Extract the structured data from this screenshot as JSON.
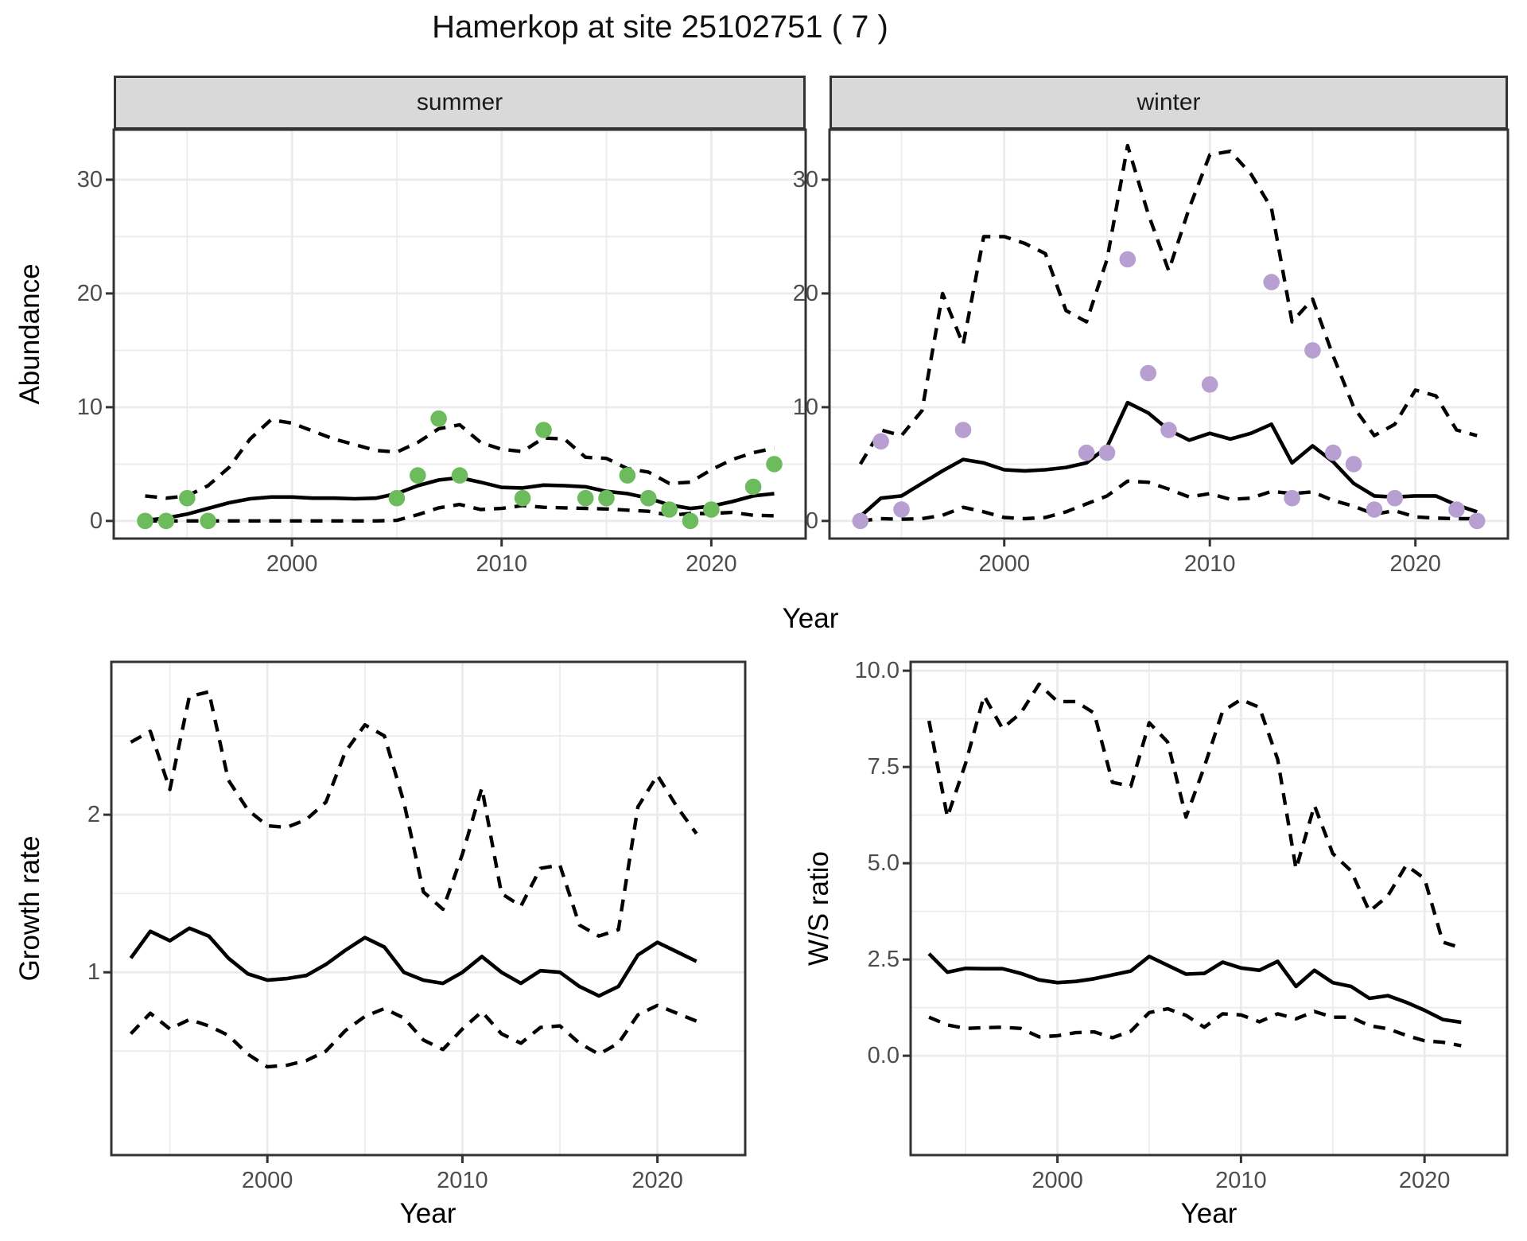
{
  "title": "Hamerkop at site 25102751 ( 7 )",
  "labels": {
    "summer_facet": "summer",
    "winter_facet": "winter",
    "abundance_axis": "Abundance",
    "growth_axis": "Growth rate",
    "ws_axis": "W/S ratio",
    "year_axis": "Year"
  },
  "colors": {
    "summer_points": "#6CBB5D",
    "winter_points": "#B79FD1",
    "line": "#000000",
    "grid": "#EBEBEB",
    "panel_border": "#333333",
    "tick_text": "#4d4d4d",
    "strip_bg": "#D9D9D9"
  },
  "chart_data": {
    "type": "line",
    "title": "Hamerkop at site 25102751 ( 7 )",
    "legend": "none",
    "line_styles": {
      "fit": "solid",
      "upper_ci": "dashed",
      "lower_ci": "dashed",
      "observations": "points"
    },
    "panels": [
      {
        "id": "summer",
        "facet": "summer",
        "xlabel": "Year",
        "ylabel": "Abundance",
        "x_range": [
          1991.5,
          2024.5
        ],
        "y_range": [
          -1.55,
          34.4
        ],
        "x_ticks": [
          2000,
          2010,
          2020
        ],
        "x_tick_labels": [
          "2000",
          "2010",
          "2020"
        ],
        "x_minor": [
          1995,
          2005,
          2015
        ],
        "y_ticks": [
          0,
          10,
          20,
          30
        ],
        "y_tick_labels": [
          "0",
          "10",
          "20",
          "30"
        ],
        "y_minor": [
          5,
          15,
          25
        ],
        "start_year": 1993,
        "fit": [
          0.05,
          0.25,
          0.6,
          1.1,
          1.6,
          1.95,
          2.1,
          2.1,
          2.0,
          2.0,
          1.95,
          2.0,
          2.4,
          3.1,
          3.6,
          3.8,
          3.4,
          2.95,
          2.9,
          3.15,
          3.1,
          3.0,
          2.6,
          2.4,
          2.0,
          1.4,
          1.1,
          1.3,
          1.7,
          2.2,
          2.4
        ],
        "upper_ci": [
          2.2,
          2.0,
          2.2,
          3.1,
          4.7,
          7.2,
          8.9,
          8.6,
          7.9,
          7.2,
          6.7,
          6.2,
          6.05,
          6.9,
          8.1,
          8.45,
          6.9,
          6.3,
          6.1,
          7.3,
          7.2,
          5.6,
          5.5,
          4.6,
          4.3,
          3.3,
          3.4,
          4.5,
          5.4,
          6.0,
          6.4
        ],
        "lower_ci": [
          0,
          0,
          0,
          0,
          0,
          0,
          0,
          0,
          0,
          0,
          0,
          0,
          0.05,
          0.55,
          1.15,
          1.45,
          1.0,
          1.1,
          1.35,
          1.2,
          1.15,
          1.1,
          1.05,
          0.95,
          0.85,
          0.5,
          0.65,
          0.65,
          0.75,
          0.5,
          0.45
        ],
        "observations": [
          [
            1993,
            0
          ],
          [
            1994,
            0
          ],
          [
            1995,
            2
          ],
          [
            1996,
            0
          ],
          [
            2005,
            2
          ],
          [
            2006,
            4
          ],
          [
            2007,
            9
          ],
          [
            2008,
            4
          ],
          [
            2011,
            2
          ],
          [
            2012,
            8
          ],
          [
            2014,
            2
          ],
          [
            2015,
            2
          ],
          [
            2016,
            4
          ],
          [
            2017,
            2
          ],
          [
            2018,
            1
          ],
          [
            2019,
            0
          ],
          [
            2020,
            1
          ],
          [
            2022,
            3
          ],
          [
            2023,
            5
          ]
        ],
        "point_color": "#6CBB5D"
      },
      {
        "id": "winter",
        "facet": "winter",
        "xlabel": "Year",
        "ylabel": "Abundance",
        "x_range": [
          1991.5,
          2024.5
        ],
        "y_range": [
          -1.55,
          34.4
        ],
        "x_ticks": [
          2000,
          2010,
          2020
        ],
        "x_tick_labels": [
          "2000",
          "2010",
          "2020"
        ],
        "x_minor": [
          1995,
          2005,
          2015
        ],
        "y_ticks": [
          0,
          10,
          20,
          30
        ],
        "y_tick_labels": [
          "0",
          "10",
          "20",
          "30"
        ],
        "y_minor": [
          5,
          15,
          25
        ],
        "start_year": 1993,
        "fit": [
          0.4,
          2.0,
          2.2,
          3.3,
          4.4,
          5.4,
          5.1,
          4.5,
          4.4,
          4.5,
          4.7,
          5.1,
          6.5,
          10.4,
          9.5,
          8.0,
          7.1,
          7.7,
          7.2,
          7.7,
          8.5,
          5.1,
          6.6,
          5.2,
          3.3,
          2.2,
          2.1,
          2.2,
          2.2,
          1.4,
          0.8
        ],
        "upper_ci": [
          5,
          8,
          7.5,
          9.7,
          20,
          15.5,
          25,
          25,
          24.4,
          23.5,
          18.5,
          17.5,
          23,
          33,
          27,
          22,
          27.5,
          32.2,
          32.5,
          30.5,
          27.5,
          17.5,
          19.5,
          14.5,
          10,
          7.5,
          8.5,
          11.5,
          11,
          8,
          7.5
        ],
        "lower_ci": [
          0,
          0.2,
          0.15,
          0.2,
          0.5,
          1.2,
          0.8,
          0.3,
          0.2,
          0.3,
          0.8,
          1.5,
          2.2,
          3.5,
          3.4,
          2.8,
          2.1,
          2.4,
          1.9,
          2.0,
          2.6,
          2.4,
          2.55,
          1.8,
          1.3,
          0.6,
          0.9,
          0.35,
          0.25,
          0.2,
          0.2
        ],
        "observations": [
          [
            1993,
            0
          ],
          [
            1994,
            7
          ],
          [
            1995,
            1
          ],
          [
            1998,
            8
          ],
          [
            2004,
            6
          ],
          [
            2005,
            6
          ],
          [
            2006,
            23
          ],
          [
            2007,
            13
          ],
          [
            2008,
            8
          ],
          [
            2010,
            12
          ],
          [
            2013,
            21
          ],
          [
            2014,
            2
          ],
          [
            2015,
            15
          ],
          [
            2016,
            6
          ],
          [
            2017,
            5
          ],
          [
            2018,
            1
          ],
          [
            2019,
            2
          ],
          [
            2022,
            1
          ],
          [
            2023,
            0
          ]
        ],
        "point_color": "#B79FD1"
      },
      {
        "id": "growth",
        "facet": null,
        "xlabel": "Year",
        "ylabel": "Growth rate",
        "x_range": [
          1992,
          2024.5
        ],
        "y_range": [
          -0.16,
          2.97
        ],
        "x_ticks": [
          2000,
          2010,
          2020
        ],
        "x_tick_labels": [
          "2000",
          "2010",
          "2020"
        ],
        "x_minor": [
          1995,
          2005,
          2015
        ],
        "y_ticks": [
          1,
          2
        ],
        "y_tick_labels": [
          "1",
          "2"
        ],
        "y_minor": [
          0.5,
          1.5,
          2.5
        ],
        "start_year": 1993,
        "fit": [
          1.09,
          1.26,
          1.2,
          1.28,
          1.23,
          1.09,
          0.99,
          0.95,
          0.96,
          0.98,
          1.05,
          1.14,
          1.22,
          1.16,
          1.0,
          0.95,
          0.93,
          1.0,
          1.1,
          1.0,
          0.93,
          1.01,
          1.0,
          0.91,
          0.85,
          0.91,
          1.11,
          1.19,
          1.13,
          1.07
        ],
        "upper_ci": [
          2.46,
          2.53,
          2.16,
          2.75,
          2.78,
          2.22,
          2.03,
          1.93,
          1.92,
          1.97,
          2.08,
          2.4,
          2.57,
          2.5,
          2.08,
          1.51,
          1.4,
          1.75,
          2.17,
          1.5,
          1.42,
          1.66,
          1.68,
          1.3,
          1.23,
          1.27,
          2.05,
          2.25,
          2.05,
          1.88
        ],
        "lower_ci": [
          0.61,
          0.74,
          0.64,
          0.7,
          0.66,
          0.6,
          0.48,
          0.4,
          0.41,
          0.44,
          0.5,
          0.63,
          0.72,
          0.77,
          0.71,
          0.57,
          0.51,
          0.64,
          0.75,
          0.61,
          0.55,
          0.65,
          0.66,
          0.55,
          0.48,
          0.55,
          0.73,
          0.79,
          0.74,
          0.69
        ],
        "observations": [],
        "point_color": "#000000"
      },
      {
        "id": "ws",
        "facet": null,
        "xlabel": "Year",
        "ylabel": "W/S ratio",
        "x_range": [
          1992,
          2024.5
        ],
        "y_range": [
          -2.58,
          10.23
        ],
        "x_ticks": [
          2000,
          2010,
          2020
        ],
        "x_tick_labels": [
          "2000",
          "2010",
          "2020"
        ],
        "x_minor": [
          1995,
          2005,
          2015
        ],
        "y_ticks": [
          0,
          2.5,
          5,
          7.5,
          10
        ],
        "y_tick_labels": [
          "0.0",
          "2.5",
          "5.0",
          "7.5",
          "10.0"
        ],
        "y_minor": [
          1.25,
          3.75,
          6.25,
          8.75
        ],
        "start_year": 1993,
        "fit": [
          2.65,
          2.17,
          2.27,
          2.26,
          2.26,
          2.14,
          1.97,
          1.9,
          1.93,
          2.0,
          2.1,
          2.2,
          2.58,
          2.35,
          2.12,
          2.14,
          2.43,
          2.28,
          2.22,
          2.45,
          1.8,
          2.22,
          1.9,
          1.8,
          1.49,
          1.56,
          1.39,
          1.18,
          0.94,
          0.87
        ],
        "upper_ci": [
          8.7,
          6.2,
          7.6,
          9.35,
          8.5,
          8.9,
          9.65,
          9.2,
          9.2,
          8.9,
          7.1,
          7.0,
          8.65,
          8.15,
          6.2,
          7.5,
          8.95,
          9.25,
          9.05,
          7.7,
          4.85,
          6.5,
          5.25,
          4.8,
          3.75,
          4.15,
          4.95,
          4.6,
          2.95,
          2.8
        ],
        "lower_ci": [
          1.0,
          0.8,
          0.71,
          0.73,
          0.74,
          0.71,
          0.49,
          0.52,
          0.6,
          0.62,
          0.47,
          0.64,
          1.12,
          1.22,
          1.05,
          0.74,
          1.09,
          1.06,
          0.88,
          1.09,
          0.96,
          1.15,
          1.0,
          1.0,
          0.78,
          0.7,
          0.53,
          0.39,
          0.35,
          0.26
        ],
        "observations": [],
        "point_color": "#000000"
      }
    ]
  }
}
